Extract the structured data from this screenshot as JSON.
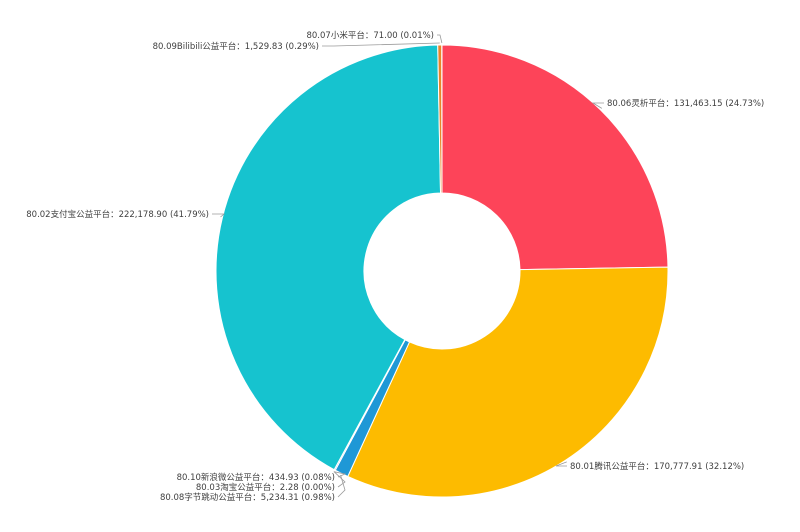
{
  "chart_data": {
    "type": "pie",
    "variant": "donut",
    "legend": "none",
    "slices": [
      {
        "label": "80.06灵析平台",
        "value": 131463.15,
        "percent": "24.73%",
        "value_text": "131,463.15",
        "color": "#fd4459"
      },
      {
        "label": "80.01腾讯公益平台",
        "value": 170777.91,
        "percent": "32.12%",
        "value_text": "170,777.91",
        "color": "#fdbb00"
      },
      {
        "label": "80.08字节跳动公益平台",
        "value": 5234.31,
        "percent": "0.98%",
        "value_text": "5,234.31",
        "color": "#1f98d6"
      },
      {
        "label": "80.03淘宝公益平台",
        "value": 2.28,
        "percent": "0.00%",
        "value_text": "2.28",
        "color": "#5b6fd6"
      },
      {
        "label": "80.10新浪微公益平台",
        "value": 434.93,
        "percent": "0.08%",
        "value_text": "434.93",
        "color": "#7c4fd1"
      },
      {
        "label": "80.02支付宝公益平台",
        "value": 222178.9,
        "percent": "41.79%",
        "value_text": "222,178.90",
        "color": "#16c3cf"
      },
      {
        "label": "80.09Bilibili公益平台",
        "value": 1529.83,
        "percent": "0.29%",
        "value_text": "1,529.83",
        "color": "#e9842a"
      },
      {
        "label": "80.07小米平台",
        "value": 71.0,
        "percent": "0.01%",
        "value_text": "71.00",
        "color": "#b0b0b0"
      }
    ]
  }
}
